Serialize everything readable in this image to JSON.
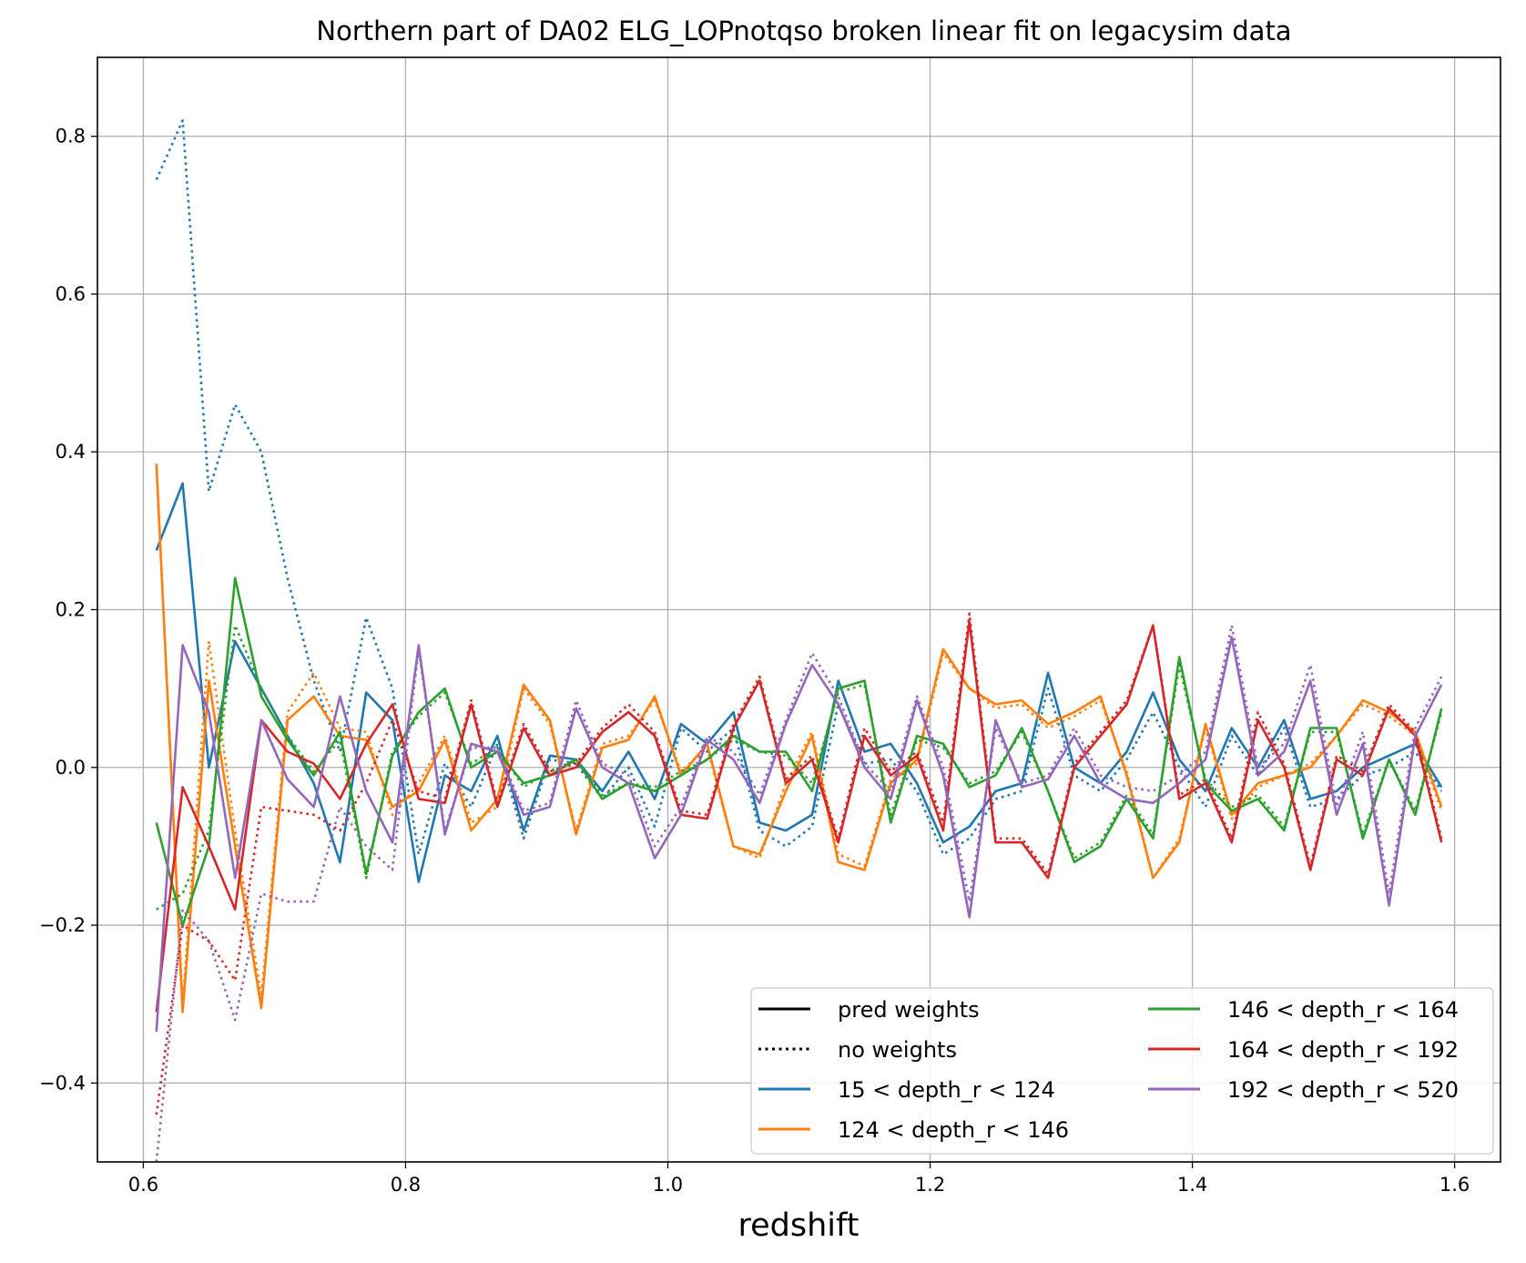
{
  "chart_data": {
    "type": "line",
    "title": "Northern part of DA02 ELG_LOPnotqso broken linear fit on legacysim data",
    "xlabel": "redshift",
    "ylabel": "",
    "xlim": [
      0.565,
      1.635
    ],
    "ylim": [
      -0.5,
      0.9
    ],
    "grid": true,
    "x_ticks": [
      0.6,
      0.8,
      1.0,
      1.2,
      1.4,
      1.6
    ],
    "x_tick_labels": [
      "0.6",
      "0.8",
      "1.0",
      "1.2",
      "1.4",
      "1.6"
    ],
    "y_ticks": [
      -0.4,
      -0.2,
      0.0,
      0.2,
      0.4,
      0.6,
      0.8
    ],
    "y_tick_labels": [
      "−0.4",
      "−0.2",
      "0.0",
      "0.2",
      "0.4",
      "0.6",
      "0.8"
    ],
    "legend": {
      "placement": "lower-right",
      "columns": 2,
      "entries": [
        {
          "label": "pred weights",
          "color": "#000000",
          "style": "solid"
        },
        {
          "label": "no weights",
          "color": "#000000",
          "style": "dotted"
        },
        {
          "label": "15 < depth_r < 124",
          "color": "#1f77b4",
          "style": "solid"
        },
        {
          "label": "124 < depth_r < 146",
          "color": "#ff7f0e",
          "style": "solid"
        },
        {
          "label": "146 < depth_r < 164",
          "color": "#2ca02c",
          "style": "solid"
        },
        {
          "label": "164 < depth_r < 192",
          "color": "#d62728",
          "style": "solid"
        },
        {
          "label": "192 < depth_r < 520",
          "color": "#9467bd",
          "style": "solid"
        }
      ]
    },
    "x": [
      0.61,
      0.63,
      0.65,
      0.67,
      0.69,
      0.71,
      0.73,
      0.75,
      0.77,
      0.79,
      0.81,
      0.83,
      0.85,
      0.87,
      0.89,
      0.91,
      0.93,
      0.95,
      0.97,
      0.99,
      1.01,
      1.03,
      1.05,
      1.07,
      1.09,
      1.11,
      1.13,
      1.15,
      1.17,
      1.19,
      1.21,
      1.23,
      1.25,
      1.27,
      1.29,
      1.31,
      1.33,
      1.35,
      1.37,
      1.39,
      1.41,
      1.43,
      1.45,
      1.47,
      1.49,
      1.51,
      1.53,
      1.55,
      1.57,
      1.59
    ],
    "series": [
      {
        "color": "#1f77b4",
        "style": "solid",
        "values": [
          0.275,
          0.36,
          0.0,
          0.16,
          0.1,
          0.04,
          -0.02,
          -0.12,
          0.095,
          0.06,
          -0.145,
          -0.01,
          -0.03,
          0.04,
          -0.08,
          0.015,
          0.01,
          -0.03,
          0.02,
          -0.04,
          0.055,
          0.03,
          0.07,
          -0.07,
          -0.08,
          -0.06,
          0.11,
          0.02,
          0.03,
          -0.02,
          -0.095,
          -0.075,
          -0.03,
          -0.02,
          0.12,
          0.0,
          -0.02,
          0.02,
          0.095,
          0.01,
          -0.03,
          0.05,
          0.0,
          0.06,
          -0.04,
          -0.03,
          0.0,
          0.015,
          0.03,
          -0.025
        ]
      },
      {
        "color": "#1f77b4",
        "style": "dotted",
        "values": [
          0.745,
          0.82,
          0.35,
          0.46,
          0.4,
          0.24,
          0.11,
          0.02,
          0.19,
          0.1,
          -0.11,
          0.005,
          -0.05,
          0.03,
          -0.09,
          0.01,
          0.005,
          -0.04,
          0.0,
          -0.075,
          0.05,
          0.02,
          0.05,
          -0.08,
          -0.1,
          -0.075,
          0.08,
          0.005,
          0.01,
          -0.03,
          -0.11,
          -0.09,
          -0.04,
          -0.03,
          0.1,
          -0.01,
          -0.03,
          0.01,
          0.07,
          0.0,
          -0.05,
          0.04,
          -0.01,
          0.05,
          -0.05,
          -0.04,
          -0.01,
          0.0,
          0.02,
          -0.03
        ]
      },
      {
        "color": "#ff7f0e",
        "style": "solid",
        "values": [
          0.385,
          -0.31,
          0.11,
          -0.1,
          -0.305,
          0.06,
          0.09,
          0.04,
          0.035,
          -0.05,
          -0.03,
          0.035,
          -0.08,
          -0.04,
          0.105,
          0.06,
          -0.085,
          0.025,
          0.035,
          0.09,
          -0.01,
          0.03,
          -0.1,
          -0.11,
          -0.03,
          0.04,
          -0.12,
          -0.13,
          -0.02,
          0.01,
          0.15,
          0.1,
          0.08,
          0.085,
          0.055,
          0.07,
          0.09,
          -0.01,
          -0.14,
          -0.095,
          0.055,
          -0.06,
          -0.02,
          -0.01,
          0.0,
          0.04,
          0.085,
          0.07,
          0.045,
          -0.05
        ]
      },
      {
        "color": "#ff7f0e",
        "style": "dotted",
        "values": [
          0.38,
          -0.3,
          0.16,
          -0.08,
          -0.29,
          0.07,
          0.12,
          0.05,
          0.045,
          -0.06,
          -0.02,
          0.04,
          -0.07,
          -0.05,
          0.1,
          0.055,
          -0.08,
          0.03,
          0.04,
          0.085,
          -0.005,
          0.025,
          -0.1,
          -0.115,
          -0.02,
          0.045,
          -0.11,
          -0.125,
          -0.015,
          0.005,
          0.145,
          0.1,
          0.075,
          0.08,
          0.05,
          0.065,
          0.085,
          -0.005,
          -0.14,
          -0.09,
          0.05,
          -0.065,
          -0.025,
          -0.01,
          0.005,
          0.04,
          0.08,
          0.065,
          0.04,
          -0.055
        ]
      },
      {
        "color": "#2ca02c",
        "style": "solid",
        "values": [
          -0.07,
          -0.2,
          -0.1,
          0.24,
          0.09,
          0.035,
          -0.01,
          0.045,
          -0.135,
          0.015,
          0.07,
          0.1,
          0.0,
          0.02,
          -0.02,
          -0.01,
          0.01,
          -0.04,
          -0.02,
          -0.03,
          -0.01,
          0.01,
          0.04,
          0.02,
          0.02,
          -0.03,
          0.1,
          0.11,
          -0.07,
          0.04,
          0.03,
          -0.025,
          -0.01,
          0.05,
          -0.03,
          -0.12,
          -0.1,
          -0.04,
          -0.09,
          0.14,
          -0.02,
          -0.055,
          -0.04,
          -0.08,
          0.05,
          0.05,
          -0.09,
          0.01,
          -0.06,
          0.075
        ]
      },
      {
        "color": "#2ca02c",
        "style": "dotted",
        "values": [
          -0.18,
          -0.16,
          -0.08,
          0.18,
          0.1,
          0.04,
          -0.005,
          0.035,
          -0.14,
          0.02,
          0.065,
          0.095,
          0.005,
          0.025,
          -0.025,
          -0.005,
          0.01,
          -0.035,
          -0.02,
          -0.025,
          -0.005,
          0.01,
          0.035,
          0.02,
          0.015,
          -0.02,
          0.095,
          0.105,
          -0.06,
          0.035,
          0.025,
          -0.02,
          -0.005,
          0.045,
          -0.03,
          -0.115,
          -0.095,
          -0.035,
          -0.085,
          0.13,
          -0.015,
          -0.05,
          -0.035,
          -0.075,
          0.045,
          0.045,
          -0.085,
          0.01,
          -0.055,
          0.07
        ]
      },
      {
        "color": "#d62728",
        "style": "solid",
        "values": [
          -0.31,
          -0.025,
          -0.1,
          -0.18,
          0.06,
          0.02,
          0.005,
          -0.04,
          0.03,
          0.08,
          -0.04,
          -0.045,
          0.08,
          -0.05,
          0.05,
          -0.01,
          0.0,
          0.045,
          0.07,
          0.04,
          -0.06,
          -0.065,
          0.05,
          0.11,
          -0.02,
          0.01,
          -0.095,
          0.04,
          -0.01,
          0.015,
          -0.08,
          0.185,
          -0.095,
          -0.095,
          -0.14,
          0.0,
          0.04,
          0.08,
          0.18,
          -0.04,
          -0.02,
          -0.095,
          0.06,
          0.0,
          -0.13,
          0.01,
          -0.01,
          0.075,
          0.04,
          -0.095
        ]
      },
      {
        "color": "#d62728",
        "style": "dotted",
        "values": [
          -0.44,
          -0.2,
          -0.22,
          -0.27,
          -0.05,
          -0.055,
          -0.06,
          -0.08,
          -0.02,
          0.06,
          -0.03,
          -0.04,
          0.085,
          -0.045,
          0.055,
          -0.005,
          0.005,
          0.05,
          0.08,
          0.045,
          -0.055,
          -0.06,
          0.055,
          0.115,
          -0.015,
          0.015,
          -0.09,
          0.05,
          -0.005,
          0.02,
          -0.07,
          0.195,
          -0.09,
          -0.09,
          -0.135,
          0.005,
          0.045,
          0.085,
          0.18,
          -0.035,
          -0.015,
          -0.09,
          0.07,
          0.005,
          -0.125,
          0.015,
          -0.005,
          0.08,
          0.045,
          -0.09
        ]
      },
      {
        "color": "#9467bd",
        "style": "solid",
        "values": [
          -0.335,
          0.155,
          0.07,
          -0.14,
          0.06,
          -0.015,
          -0.05,
          0.09,
          -0.03,
          -0.095,
          0.155,
          -0.085,
          0.03,
          0.02,
          -0.06,
          -0.05,
          0.075,
          0.0,
          -0.02,
          -0.115,
          -0.06,
          0.035,
          0.01,
          -0.045,
          0.055,
          0.13,
          0.08,
          0.0,
          -0.04,
          0.085,
          -0.01,
          -0.19,
          0.06,
          -0.025,
          -0.015,
          0.04,
          -0.02,
          -0.04,
          -0.045,
          -0.02,
          0.01,
          0.165,
          -0.01,
          0.02,
          0.11,
          -0.06,
          0.03,
          -0.175,
          0.04,
          0.105
        ]
      },
      {
        "color": "#9467bd",
        "style": "dotted",
        "values": [
          -0.5,
          -0.18,
          -0.22,
          -0.32,
          -0.16,
          -0.17,
          -0.17,
          -0.05,
          -0.1,
          -0.13,
          0.15,
          -0.08,
          0.025,
          0.025,
          -0.055,
          -0.045,
          0.085,
          0.005,
          -0.01,
          -0.1,
          -0.05,
          0.04,
          0.02,
          -0.035,
          0.06,
          0.145,
          0.09,
          0.005,
          -0.03,
          0.09,
          0.0,
          -0.17,
          0.05,
          -0.02,
          -0.01,
          0.05,
          -0.01,
          -0.025,
          -0.03,
          -0.01,
          0.02,
          0.18,
          0.0,
          0.03,
          0.13,
          -0.05,
          0.045,
          -0.16,
          0.05,
          0.115
        ]
      }
    ]
  }
}
